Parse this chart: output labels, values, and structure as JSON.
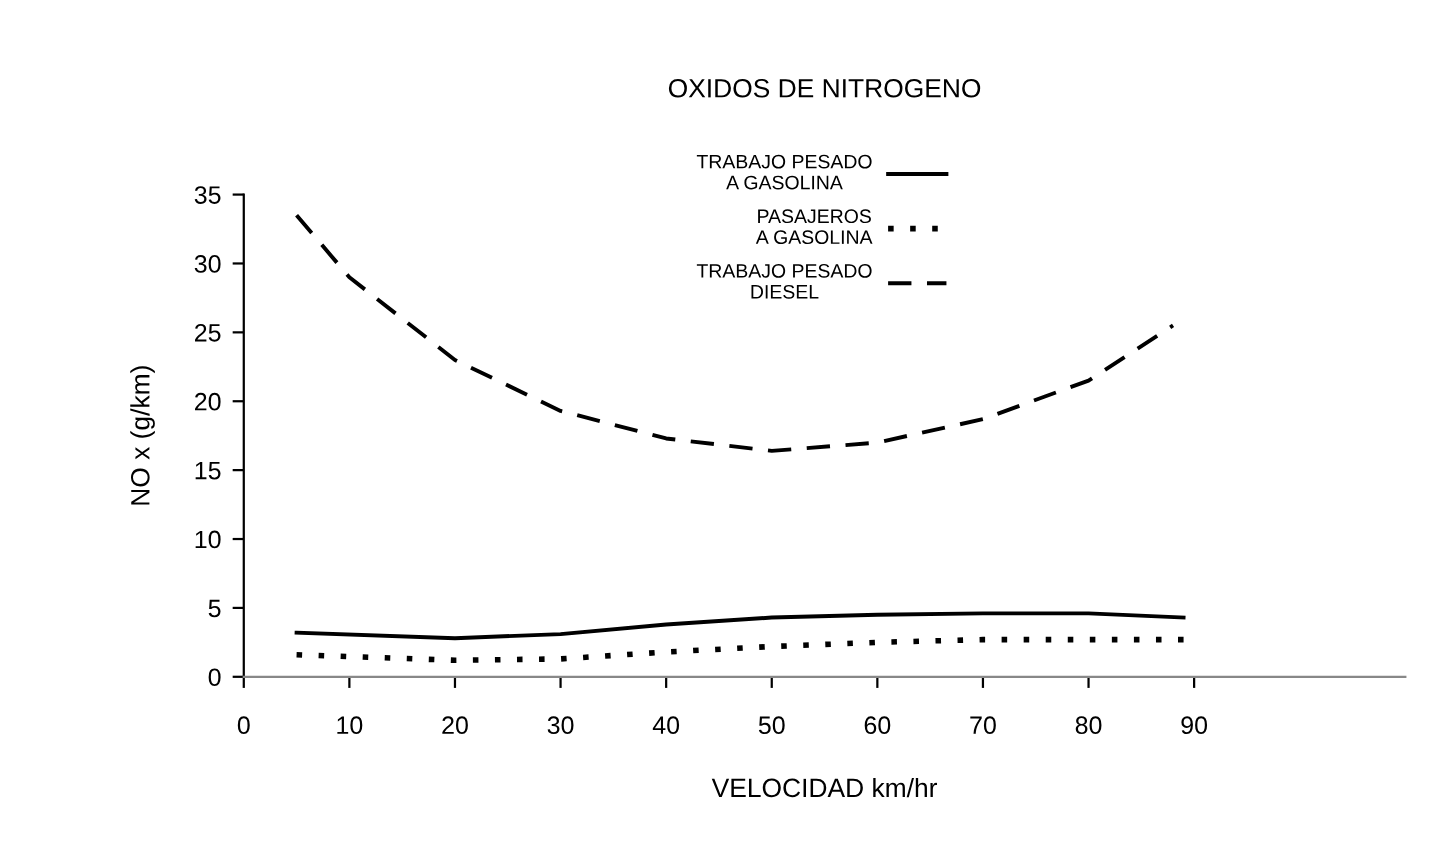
{
  "chart_data": {
    "type": "line",
    "title": "OXIDOS DE NITROGENO",
    "xlabel": "VELOCIDAD km/hr",
    "ylabel": "NO x (g/km)",
    "xlim": [
      0,
      110
    ],
    "xticks": [
      0,
      10,
      20,
      30,
      40,
      50,
      60,
      70,
      80,
      90
    ],
    "ylim": [
      0,
      35
    ],
    "yticks": [
      0,
      5,
      10,
      15,
      20,
      25,
      30,
      35
    ],
    "grid": false,
    "legend": "top right",
    "marker": "none",
    "series": [
      {
        "name": "TRABAJO PESADO\nA GASOLINA",
        "color": "#000000",
        "line_style": "solid",
        "x": [
          5,
          20,
          30,
          40,
          50,
          60,
          70,
          80,
          89
        ],
        "values": [
          3.2,
          2.8,
          3.1,
          3.8,
          4.3,
          4.5,
          4.6,
          4.6,
          4.3
        ]
      },
      {
        "name": "PASAJEROS\nA GASOLINA",
        "color": "#000000",
        "line_style": "dotted",
        "x": [
          5,
          20,
          30,
          40,
          50,
          60,
          70,
          80,
          89
        ],
        "values": [
          1.6,
          1.2,
          1.3,
          1.8,
          2.2,
          2.5,
          2.7,
          2.7,
          2.7
        ]
      },
      {
        "name": "TRABAJO PESADO\nDIESEL",
        "color": "#000000",
        "line_style": "dashed",
        "x": [
          5,
          10,
          20,
          30,
          40,
          50,
          60,
          70,
          80,
          88
        ],
        "values": [
          33.5,
          29,
          23,
          19.3,
          17.3,
          16.4,
          17,
          18.7,
          21.5,
          25.5
        ]
      }
    ]
  }
}
